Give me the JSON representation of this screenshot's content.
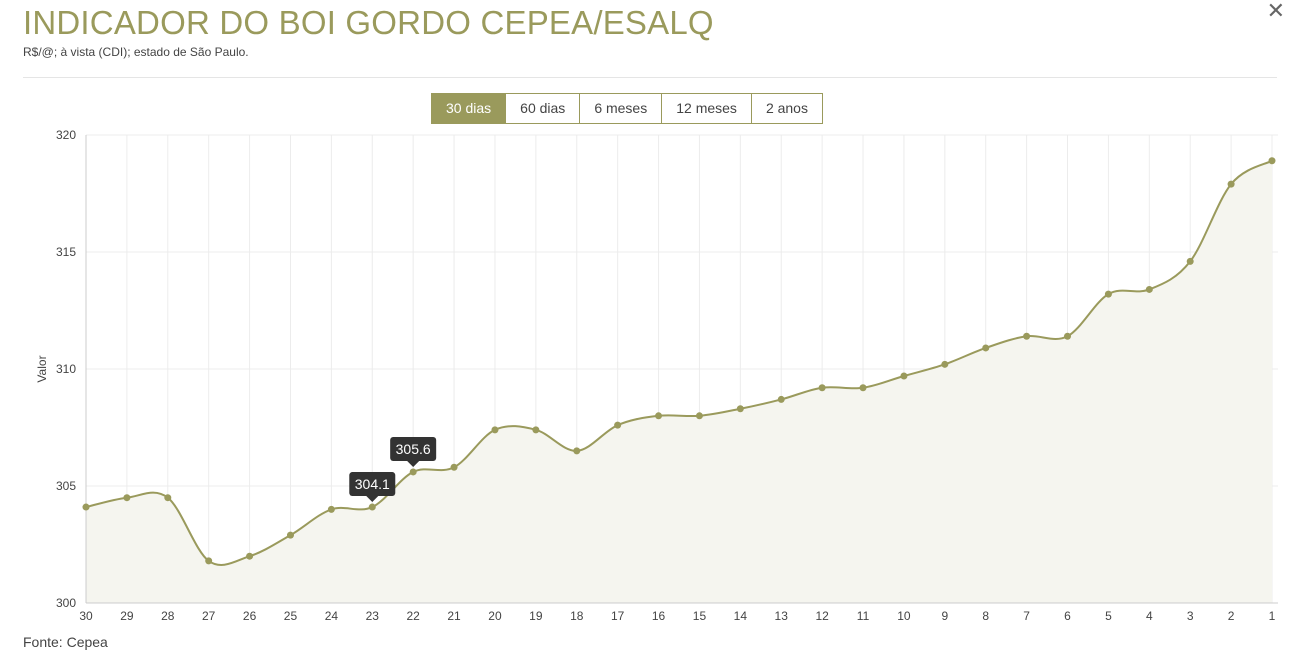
{
  "header": {
    "title": "INDICADOR DO BOI GORDO CEPEA/ESALQ",
    "subtitle": "R$/@; à vista (CDI); estado de São Paulo.",
    "close_icon": "close-icon"
  },
  "tabs": [
    {
      "label": "30 dias",
      "active": true
    },
    {
      "label": "60 dias",
      "active": false
    },
    {
      "label": "6 meses",
      "active": false
    },
    {
      "label": "12 meses",
      "active": false
    },
    {
      "label": "2 anos",
      "active": false
    }
  ],
  "footer": {
    "source": "Fonte: Cepea"
  },
  "colors": {
    "accent": "#9a9a5c",
    "area_fill": "#f5f5ef",
    "grid": "#ececec",
    "tooltip_bg": "#333333"
  },
  "chart_data": {
    "type": "area",
    "title": "",
    "xlabel": "",
    "ylabel": "Valor",
    "ylim": [
      300,
      320
    ],
    "yticks": [
      300,
      305,
      310,
      315,
      320
    ],
    "grid": true,
    "categories": [
      "30",
      "29",
      "28",
      "27",
      "26",
      "25",
      "24",
      "23",
      "22",
      "21",
      "20",
      "19",
      "18",
      "17",
      "16",
      "15",
      "14",
      "13",
      "12",
      "11",
      "10",
      "9",
      "8",
      "7",
      "6",
      "5",
      "4",
      "3",
      "2",
      "1"
    ],
    "series": [
      {
        "values": [
          304.1,
          304.5,
          304.5,
          301.8,
          302.0,
          302.9,
          304.0,
          304.1,
          305.6,
          305.8,
          307.4,
          307.4,
          306.5,
          307.6,
          308.0,
          308.0,
          308.3,
          308.7,
          309.2,
          309.2,
          309.7,
          310.2,
          310.9,
          311.4,
          311.4,
          313.2,
          313.4,
          314.6,
          317.9,
          318.9
        ]
      }
    ],
    "annotations": [
      {
        "category": "23",
        "label": "304.1"
      },
      {
        "category": "22",
        "label": "305.6"
      }
    ]
  }
}
